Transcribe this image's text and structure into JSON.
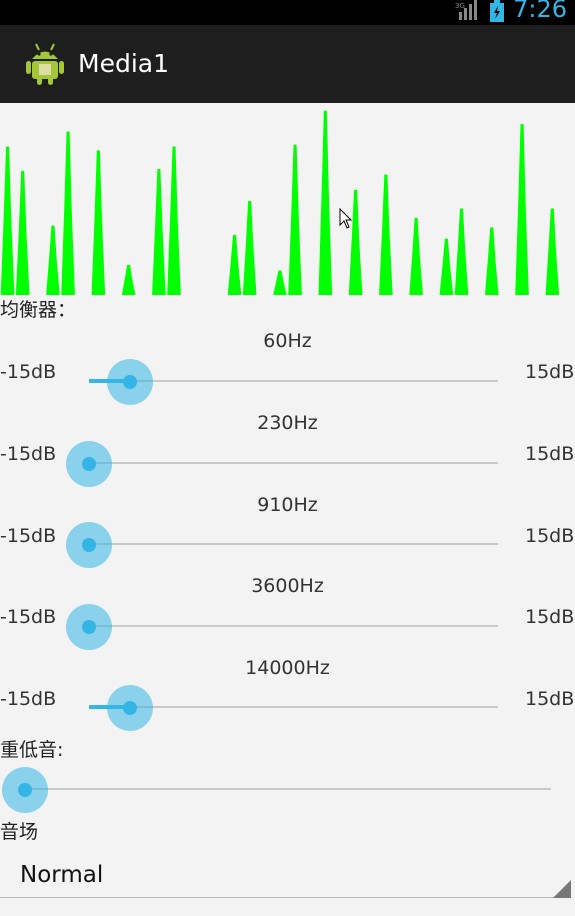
{
  "status_bar": {
    "time": "7:26",
    "network": "3G"
  },
  "app": {
    "title": "Media1",
    "icon": "android-robot-icon"
  },
  "visualizer": {
    "color": "#00ff00",
    "levels": [
      0.79,
      0.66,
      0.0,
      0.37,
      0.87,
      0.0,
      0.77,
      0.0,
      0.16,
      0.0,
      0.67,
      0.79,
      0.0,
      0.0,
      0.0,
      0.32,
      0.5,
      0.0,
      0.13,
      0.8,
      0.0,
      0.98,
      0.0,
      0.56,
      0.0,
      0.64,
      0.0,
      0.41,
      0.0,
      0.3,
      0.46,
      0.0,
      0.36,
      0.0,
      0.91,
      0.0,
      0.46,
      0.0
    ]
  },
  "equalizer": {
    "title": "均衡器：",
    "bands": [
      {
        "freq": "60Hz",
        "min": "-15dB",
        "max": "15dB",
        "level": 0.1
      },
      {
        "freq": "230Hz",
        "min": "-15dB",
        "max": "15dB",
        "level": 0.0
      },
      {
        "freq": "910Hz",
        "min": "-15dB",
        "max": "15dB",
        "level": 0.0
      },
      {
        "freq": "3600Hz",
        "min": "-15dB",
        "max": "15dB",
        "level": 0.0
      },
      {
        "freq": "14000Hz",
        "min": "-15dB",
        "max": "15dB",
        "level": 0.1
      }
    ]
  },
  "bass": {
    "title": "重低音:",
    "level": 0.0
  },
  "reverb": {
    "title": "音场",
    "selected": "Normal"
  },
  "colors": {
    "accent": "#33b5e5",
    "action_bar": "#1e1e1e",
    "background": "#f3f3f3"
  }
}
